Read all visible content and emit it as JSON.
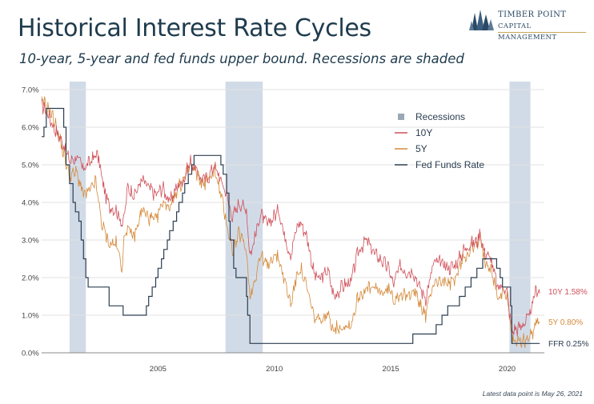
{
  "header": {
    "title": "Historical Interest Rate Cycles",
    "subtitle": "10-year, 5-year and fed funds upper bound. Recessions are shaded"
  },
  "logo": {
    "line1": "Timber Point",
    "line2": "Capital Management",
    "icon": "tree-icon"
  },
  "footnote": "Latest data point is May 26, 2021",
  "colors": {
    "y10": "#d0505a",
    "y5": "#d48a3a",
    "ffr": "#2c3e50",
    "recession": "#c9d5e3",
    "grid": "#e2e2e2",
    "axis": "#888888"
  },
  "chart_data": {
    "type": "line",
    "x_range": [
      2000.0,
      2021.6
    ],
    "ylim": [
      0,
      7
    ],
    "y_ticks": [
      "0.0%",
      "1.0%",
      "2.0%",
      "3.0%",
      "4.0%",
      "5.0%",
      "6.0%",
      "7.0%"
    ],
    "y_tick_values": [
      0,
      1,
      2,
      3,
      4,
      5,
      6,
      7
    ],
    "x_ticks": [
      "2005",
      "2010",
      "2015",
      "2020"
    ],
    "x_tick_values": [
      2005,
      2010,
      2015,
      2020
    ],
    "grid": true,
    "legend_position": "top-right",
    "legend": [
      "Recessions",
      "10Y",
      "5Y",
      "Fed Funds Rate"
    ],
    "recessions": [
      [
        2001.2,
        2001.9
      ],
      [
        2007.9,
        2009.5
      ],
      [
        2020.1,
        2021.0
      ]
    ],
    "series": [
      {
        "name": "10Y",
        "end_label": "10Y 1.58%",
        "points": [
          [
            2000.0,
            6.6
          ],
          [
            2000.3,
            6.3
          ],
          [
            2000.6,
            5.9
          ],
          [
            2000.9,
            5.6
          ],
          [
            2001.2,
            5.1
          ],
          [
            2001.5,
            5.2
          ],
          [
            2001.8,
            4.9
          ],
          [
            2002.1,
            5.1
          ],
          [
            2002.4,
            5.3
          ],
          [
            2002.7,
            4.3
          ],
          [
            2002.9,
            3.9
          ],
          [
            2003.2,
            3.8
          ],
          [
            2003.5,
            3.4
          ],
          [
            2003.7,
            4.4
          ],
          [
            2004.0,
            4.2
          ],
          [
            2004.3,
            4.6
          ],
          [
            2004.6,
            4.4
          ],
          [
            2004.9,
            4.2
          ],
          [
            2005.2,
            4.4
          ],
          [
            2005.5,
            4.0
          ],
          [
            2005.8,
            4.4
          ],
          [
            2006.1,
            4.6
          ],
          [
            2006.4,
            5.1
          ],
          [
            2006.7,
            4.8
          ],
          [
            2006.9,
            4.6
          ],
          [
            2007.2,
            4.7
          ],
          [
            2007.4,
            5.0
          ],
          [
            2007.7,
            4.6
          ],
          [
            2007.9,
            4.3
          ],
          [
            2008.2,
            3.6
          ],
          [
            2008.5,
            4.0
          ],
          [
            2008.8,
            3.8
          ],
          [
            2008.95,
            2.6
          ],
          [
            2009.1,
            2.9
          ],
          [
            2009.4,
            3.7
          ],
          [
            2009.7,
            3.4
          ],
          [
            2009.95,
            3.6
          ],
          [
            2010.2,
            3.8
          ],
          [
            2010.4,
            3.2
          ],
          [
            2010.7,
            2.6
          ],
          [
            2010.95,
            3.3
          ],
          [
            2011.1,
            3.5
          ],
          [
            2011.4,
            3.1
          ],
          [
            2011.7,
            2.1
          ],
          [
            2011.95,
            1.95
          ],
          [
            2012.3,
            2.2
          ],
          [
            2012.55,
            1.5
          ],
          [
            2012.9,
            1.75
          ],
          [
            2013.3,
            1.9
          ],
          [
            2013.6,
            2.7
          ],
          [
            2013.95,
            3.0
          ],
          [
            2014.3,
            2.65
          ],
          [
            2014.7,
            2.4
          ],
          [
            2014.95,
            2.2
          ],
          [
            2015.1,
            1.8
          ],
          [
            2015.4,
            2.3
          ],
          [
            2015.7,
            2.15
          ],
          [
            2015.95,
            2.2
          ],
          [
            2016.2,
            1.8
          ],
          [
            2016.5,
            1.45
          ],
          [
            2016.85,
            2.4
          ],
          [
            2017.2,
            2.4
          ],
          [
            2017.5,
            2.25
          ],
          [
            2017.8,
            2.35
          ],
          [
            2018.1,
            2.7
          ],
          [
            2018.4,
            2.9
          ],
          [
            2018.7,
            2.95
          ],
          [
            2018.85,
            3.2
          ],
          [
            2019.0,
            2.7
          ],
          [
            2019.3,
            2.5
          ],
          [
            2019.6,
            1.7
          ],
          [
            2019.8,
            1.8
          ],
          [
            2020.0,
            1.6
          ],
          [
            2020.2,
            0.6
          ],
          [
            2020.5,
            0.65
          ],
          [
            2020.8,
            0.85
          ],
          [
            2020.95,
            0.95
          ],
          [
            2021.1,
            1.3
          ],
          [
            2021.25,
            1.72
          ],
          [
            2021.4,
            1.58
          ]
        ]
      },
      {
        "name": "5Y",
        "end_label": "5Y 0.80%",
        "points": [
          [
            2000.0,
            6.7
          ],
          [
            2000.3,
            6.5
          ],
          [
            2000.6,
            6.1
          ],
          [
            2000.9,
            5.4
          ],
          [
            2001.2,
            4.7
          ],
          [
            2001.5,
            4.8
          ],
          [
            2001.8,
            4.2
          ],
          [
            2002.1,
            4.3
          ],
          [
            2002.3,
            4.6
          ],
          [
            2002.6,
            3.4
          ],
          [
            2002.9,
            2.9
          ],
          [
            2003.2,
            2.9
          ],
          [
            2003.45,
            2.3
          ],
          [
            2003.6,
            3.3
          ],
          [
            2004.0,
            3.1
          ],
          [
            2004.3,
            3.8
          ],
          [
            2004.6,
            3.6
          ],
          [
            2004.9,
            3.5
          ],
          [
            2005.2,
            4.0
          ],
          [
            2005.5,
            3.9
          ],
          [
            2005.8,
            4.3
          ],
          [
            2006.1,
            4.6
          ],
          [
            2006.4,
            5.0
          ],
          [
            2006.7,
            4.7
          ],
          [
            2006.9,
            4.5
          ],
          [
            2007.2,
            4.6
          ],
          [
            2007.4,
            4.9
          ],
          [
            2007.7,
            4.2
          ],
          [
            2007.9,
            3.6
          ],
          [
            2008.2,
            2.7
          ],
          [
            2008.5,
            3.2
          ],
          [
            2008.8,
            2.7
          ],
          [
            2008.95,
            1.5
          ],
          [
            2009.1,
            1.8
          ],
          [
            2009.4,
            2.6
          ],
          [
            2009.7,
            2.3
          ],
          [
            2009.95,
            2.6
          ],
          [
            2010.2,
            2.5
          ],
          [
            2010.4,
            2.0
          ],
          [
            2010.7,
            1.3
          ],
          [
            2010.95,
            2.0
          ],
          [
            2011.1,
            2.3
          ],
          [
            2011.4,
            1.7
          ],
          [
            2011.7,
            0.95
          ],
          [
            2011.95,
            0.85
          ],
          [
            2012.3,
            1.0
          ],
          [
            2012.55,
            0.65
          ],
          [
            2012.9,
            0.7
          ],
          [
            2013.3,
            0.75
          ],
          [
            2013.6,
            1.5
          ],
          [
            2013.95,
            1.7
          ],
          [
            2014.3,
            1.7
          ],
          [
            2014.7,
            1.6
          ],
          [
            2014.95,
            1.7
          ],
          [
            2015.1,
            1.4
          ],
          [
            2015.4,
            1.6
          ],
          [
            2015.7,
            1.45
          ],
          [
            2015.95,
            1.75
          ],
          [
            2016.2,
            1.35
          ],
          [
            2016.5,
            1.0
          ],
          [
            2016.85,
            1.9
          ],
          [
            2017.2,
            1.9
          ],
          [
            2017.5,
            1.8
          ],
          [
            2017.8,
            2.0
          ],
          [
            2018.1,
            2.5
          ],
          [
            2018.4,
            2.75
          ],
          [
            2018.7,
            2.85
          ],
          [
            2018.85,
            3.05
          ],
          [
            2019.0,
            2.5
          ],
          [
            2019.3,
            2.3
          ],
          [
            2019.6,
            1.45
          ],
          [
            2019.8,
            1.6
          ],
          [
            2020.0,
            1.55
          ],
          [
            2020.2,
            0.4
          ],
          [
            2020.5,
            0.3
          ],
          [
            2020.8,
            0.35
          ],
          [
            2020.95,
            0.38
          ],
          [
            2021.1,
            0.55
          ],
          [
            2021.25,
            0.9
          ],
          [
            2021.4,
            0.8
          ]
        ]
      },
      {
        "name": "Fed Funds Rate",
        "end_label": "FFR 0.25%",
        "step": true,
        "points": [
          [
            2000.0,
            5.75
          ],
          [
            2000.1,
            6.0
          ],
          [
            2000.2,
            6.5
          ],
          [
            2000.95,
            6.0
          ],
          [
            2001.05,
            5.0
          ],
          [
            2001.2,
            4.5
          ],
          [
            2001.35,
            4.0
          ],
          [
            2001.45,
            3.75
          ],
          [
            2001.6,
            3.5
          ],
          [
            2001.7,
            3.0
          ],
          [
            2001.8,
            2.5
          ],
          [
            2001.9,
            2.0
          ],
          [
            2002.0,
            1.75
          ],
          [
            2002.9,
            1.25
          ],
          [
            2003.5,
            1.0
          ],
          [
            2004.5,
            1.25
          ],
          [
            2004.6,
            1.5
          ],
          [
            2004.75,
            1.75
          ],
          [
            2004.9,
            2.0
          ],
          [
            2005.0,
            2.25
          ],
          [
            2005.15,
            2.5
          ],
          [
            2005.25,
            2.75
          ],
          [
            2005.4,
            3.0
          ],
          [
            2005.5,
            3.25
          ],
          [
            2005.65,
            3.5
          ],
          [
            2005.8,
            3.75
          ],
          [
            2005.9,
            4.0
          ],
          [
            2006.05,
            4.25
          ],
          [
            2006.15,
            4.5
          ],
          [
            2006.3,
            4.75
          ],
          [
            2006.45,
            5.0
          ],
          [
            2006.55,
            5.25
          ],
          [
            2007.7,
            5.0
          ],
          [
            2007.8,
            4.75
          ],
          [
            2007.95,
            4.25
          ],
          [
            2008.05,
            3.5
          ],
          [
            2008.1,
            3.0
          ],
          [
            2008.25,
            2.25
          ],
          [
            2008.35,
            2.0
          ],
          [
            2008.8,
            1.5
          ],
          [
            2008.85,
            1.0
          ],
          [
            2008.95,
            0.25
          ],
          [
            2015.95,
            0.5
          ],
          [
            2016.95,
            0.75
          ],
          [
            2017.2,
            1.0
          ],
          [
            2017.45,
            1.25
          ],
          [
            2017.95,
            1.5
          ],
          [
            2018.2,
            1.75
          ],
          [
            2018.45,
            2.0
          ],
          [
            2018.7,
            2.25
          ],
          [
            2018.95,
            2.5
          ],
          [
            2019.55,
            2.25
          ],
          [
            2019.7,
            2.0
          ],
          [
            2019.8,
            1.75
          ],
          [
            2020.15,
            1.25
          ],
          [
            2020.2,
            0.25
          ],
          [
            2021.4,
            0.25
          ]
        ]
      }
    ]
  }
}
